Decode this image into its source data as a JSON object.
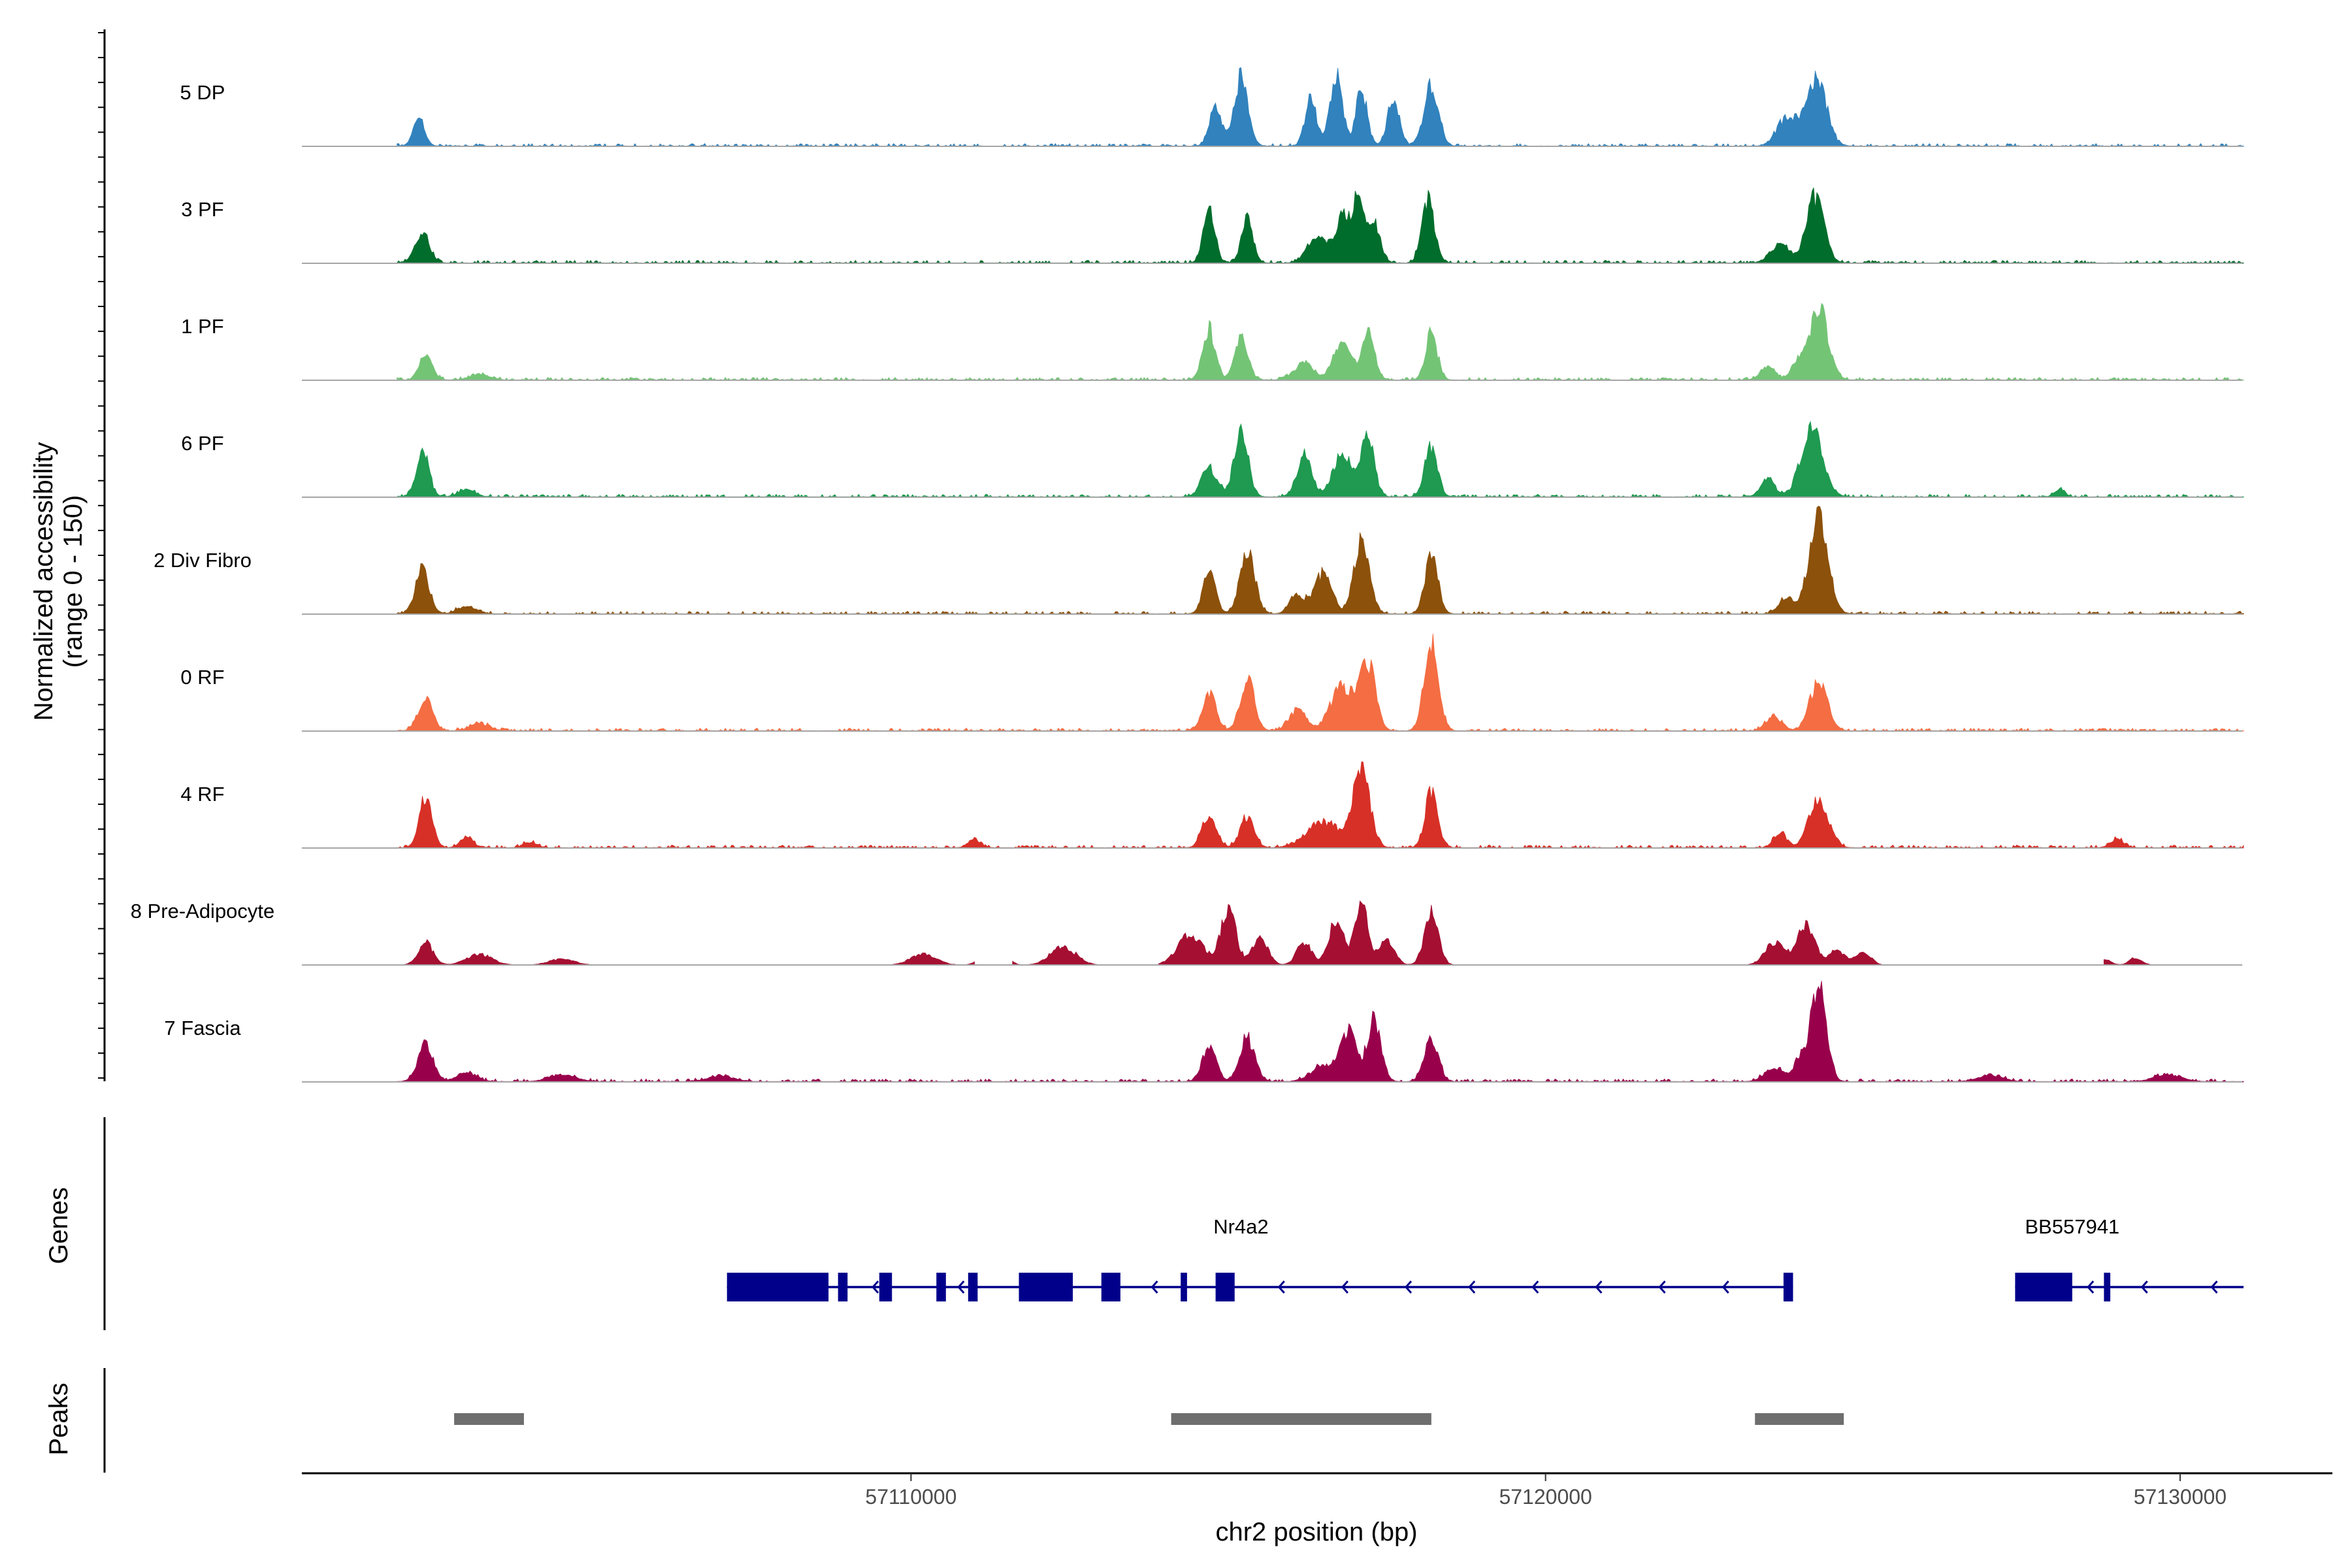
{
  "chart_data": {
    "type": "area",
    "title": "",
    "xlabel": "chr2 position (bp)",
    "ylabel": "Normalized accessibility",
    "ylabel_range": "(range 0 - 150)",
    "xlim": [
      57100400,
      57132400
    ],
    "ylim": [
      0,
      150
    ],
    "x_ticks": [
      57110000,
      57120000,
      57130000
    ],
    "x_tick_labels": [
      "57110000",
      "57120000",
      "57130000"
    ],
    "genes_panel_label": "Genes",
    "peaks_panel_label": "Peaks",
    "tracks": [
      {
        "name": "5 DP",
        "color": "#3182bd",
        "sparse": false,
        "scale": 0.95,
        "peaks": [
          [
            57102250,
            38,
            90
          ],
          [
            57114800,
            55,
            95
          ],
          [
            57115200,
            96,
            110
          ],
          [
            57116300,
            70,
            90
          ],
          [
            57116700,
            95,
            100
          ],
          [
            57117100,
            80,
            90
          ],
          [
            57117600,
            66,
            95
          ],
          [
            57118200,
            90,
            110
          ],
          [
            57123800,
            40,
            150
          ],
          [
            57124250,
            100,
            160
          ]
        ]
      },
      {
        "name": "3 PF",
        "color": "#006d2c",
        "sparse": false,
        "scale": 1.0,
        "peaks": [
          [
            57102300,
            42,
            110
          ],
          [
            57114700,
            72,
            90
          ],
          [
            57115300,
            60,
            90
          ],
          [
            57116400,
            35,
            150
          ],
          [
            57116800,
            65,
            110
          ],
          [
            57117050,
            85,
            90
          ],
          [
            57117300,
            50,
            100
          ],
          [
            57118150,
            82,
            100
          ],
          [
            57123700,
            25,
            150
          ],
          [
            57124250,
            88,
            140
          ]
        ]
      },
      {
        "name": "1 PF",
        "color": "#74c476",
        "sparse": false,
        "scale": 0.95,
        "peaks": [
          [
            57102350,
            40,
            100
          ],
          [
            57103200,
            8,
            150
          ],
          [
            57114700,
            72,
            100
          ],
          [
            57115200,
            62,
            100
          ],
          [
            57116200,
            25,
            150
          ],
          [
            57116800,
            60,
            130
          ],
          [
            57117200,
            70,
            100
          ],
          [
            57118200,
            70,
            90
          ],
          [
            57123500,
            18,
            120
          ],
          [
            57123950,
            24,
            80
          ],
          [
            57124300,
            100,
            150
          ]
        ]
      },
      {
        "name": "6 PF",
        "color": "#1f9a50",
        "sparse": false,
        "scale": 1.0,
        "peaks": [
          [
            57102300,
            62,
            100
          ],
          [
            57103000,
            10,
            130
          ],
          [
            57114700,
            40,
            120
          ],
          [
            57115200,
            88,
            110
          ],
          [
            57116200,
            55,
            120
          ],
          [
            57116800,
            60,
            150
          ],
          [
            57117200,
            85,
            100
          ],
          [
            57118200,
            68,
            100
          ],
          [
            57123500,
            25,
            110
          ],
          [
            57124200,
            95,
            170
          ],
          [
            57128100,
            10,
            80
          ]
        ]
      },
      {
        "name": "2 Div Fibro",
        "color": "#8c510a",
        "sparse": false,
        "scale": 1.0,
        "peaks": [
          [
            57102300,
            60,
            110
          ],
          [
            57103000,
            10,
            140
          ],
          [
            57114700,
            55,
            100
          ],
          [
            57115300,
            80,
            120
          ],
          [
            57116100,
            25,
            120
          ],
          [
            57116500,
            55,
            130
          ],
          [
            57117100,
            95,
            120
          ],
          [
            57118200,
            80,
            100
          ],
          [
            57123800,
            20,
            120
          ],
          [
            57124300,
            130,
            150
          ]
        ]
      },
      {
        "name": "0 RF",
        "color": "#f46d43",
        "sparse": false,
        "scale": 1.0,
        "peaks": [
          [
            57102350,
            45,
            110
          ],
          [
            57103200,
            10,
            150
          ],
          [
            57114700,
            50,
            110
          ],
          [
            57115300,
            70,
            110
          ],
          [
            57116100,
            30,
            130
          ],
          [
            57116800,
            60,
            180
          ],
          [
            57117200,
            90,
            120
          ],
          [
            57118200,
            120,
            110
          ],
          [
            57123600,
            20,
            120
          ],
          [
            57124300,
            65,
            140
          ]
        ]
      },
      {
        "name": "4 RF",
        "color": "#d73027",
        "sparse": false,
        "scale": 1.0,
        "peaks": [
          [
            57102350,
            70,
            100
          ],
          [
            57103000,
            15,
            100
          ],
          [
            57104000,
            8,
            100
          ],
          [
            57111000,
            10,
            100
          ],
          [
            57114700,
            45,
            110
          ],
          [
            57115300,
            40,
            110
          ],
          [
            57116500,
            35,
            250
          ],
          [
            57117100,
            105,
            130
          ],
          [
            57118200,
            75,
            100
          ],
          [
            57123700,
            20,
            100
          ],
          [
            57124300,
            70,
            150
          ],
          [
            57129000,
            12,
            100
          ]
        ]
      },
      {
        "name": "8 Pre-Adipocyte",
        "color": "#a50f32",
        "sparse": true,
        "scale": 1.0,
        "segments": [
          [
            57102000,
            57106500
          ],
          [
            57109400,
            57111000
          ],
          [
            57111600,
            57113700
          ],
          [
            57113900,
            57118700
          ],
          [
            57123200,
            57125600
          ],
          [
            57128200,
            57128500
          ],
          [
            57128800,
            57129600
          ]
        ],
        "peaks": [
          [
            57102350,
            30,
            120
          ],
          [
            57103200,
            15,
            200
          ],
          [
            57104500,
            8,
            200
          ],
          [
            57110200,
            15,
            200
          ],
          [
            57111300,
            35,
            150
          ],
          [
            57112400,
            25,
            200
          ],
          [
            57114400,
            40,
            200
          ],
          [
            57115000,
            75,
            120
          ],
          [
            57115500,
            40,
            120
          ],
          [
            57116200,
            30,
            120
          ],
          [
            57116700,
            60,
            120
          ],
          [
            57117100,
            90,
            100
          ],
          [
            57117500,
            35,
            120
          ],
          [
            57118200,
            72,
            110
          ],
          [
            57123600,
            30,
            150
          ],
          [
            57124100,
            52,
            150
          ],
          [
            57124600,
            20,
            120
          ],
          [
            57125000,
            18,
            120
          ],
          [
            57128800,
            8,
            100
          ],
          [
            57129300,
            10,
            100
          ]
        ]
      },
      {
        "name": "7 Fascia",
        "color": "#99004c",
        "sparse": false,
        "scale": 1.0,
        "peaks": [
          [
            57102350,
            52,
            120
          ],
          [
            57103000,
            12,
            150
          ],
          [
            57104500,
            10,
            200
          ],
          [
            57107000,
            8,
            200
          ],
          [
            57114700,
            45,
            110
          ],
          [
            57115300,
            58,
            120
          ],
          [
            57116500,
            20,
            200
          ],
          [
            57116900,
            65,
            130
          ],
          [
            57117300,
            80,
            110
          ],
          [
            57118200,
            58,
            110
          ],
          [
            57123600,
            18,
            150
          ],
          [
            57124000,
            28,
            100
          ],
          [
            57124300,
            135,
            120
          ],
          [
            57127000,
            8,
            200
          ],
          [
            57129800,
            10,
            200
          ]
        ]
      }
    ],
    "genes": [
      {
        "name": "Nr4a2",
        "label_x": 57115200,
        "strand": "-",
        "span": [
          57107100,
          57123900
        ],
        "exons": [
          [
            57107100,
            57108700
          ],
          [
            57108850,
            57109000
          ],
          [
            57109500,
            57109700
          ],
          [
            57110400,
            57110550
          ],
          [
            57110900,
            57111050
          ],
          [
            57111700,
            57112550
          ],
          [
            57113000,
            57113300
          ],
          [
            57114250,
            57114350
          ],
          [
            57114800,
            57115100
          ],
          [
            57123750,
            57123900
          ]
        ],
        "arrows": [
          57109400,
          57110750,
          57113800,
          57115800,
          57116800,
          57117800,
          57118800,
          57119800,
          57120800,
          57121800,
          57122800
        ]
      },
      {
        "name": "BB557941",
        "label_x": 57128300,
        "strand": "-",
        "span": [
          57127400,
          57131000
        ],
        "exons": [
          [
            57127400,
            57128300
          ],
          [
            57128800,
            57128900
          ]
        ],
        "arrows": [
          57128550,
          57129400,
          57130500
        ]
      }
    ],
    "peak_regions": [
      [
        57102800,
        57103900
      ],
      [
        57114100,
        57118200
      ],
      [
        57123300,
        57124700
      ]
    ],
    "colors": {
      "baseline": "#a6a6a6",
      "gene": "#00008b",
      "peak": "#6e6e6e",
      "axis": "#000000"
    }
  }
}
